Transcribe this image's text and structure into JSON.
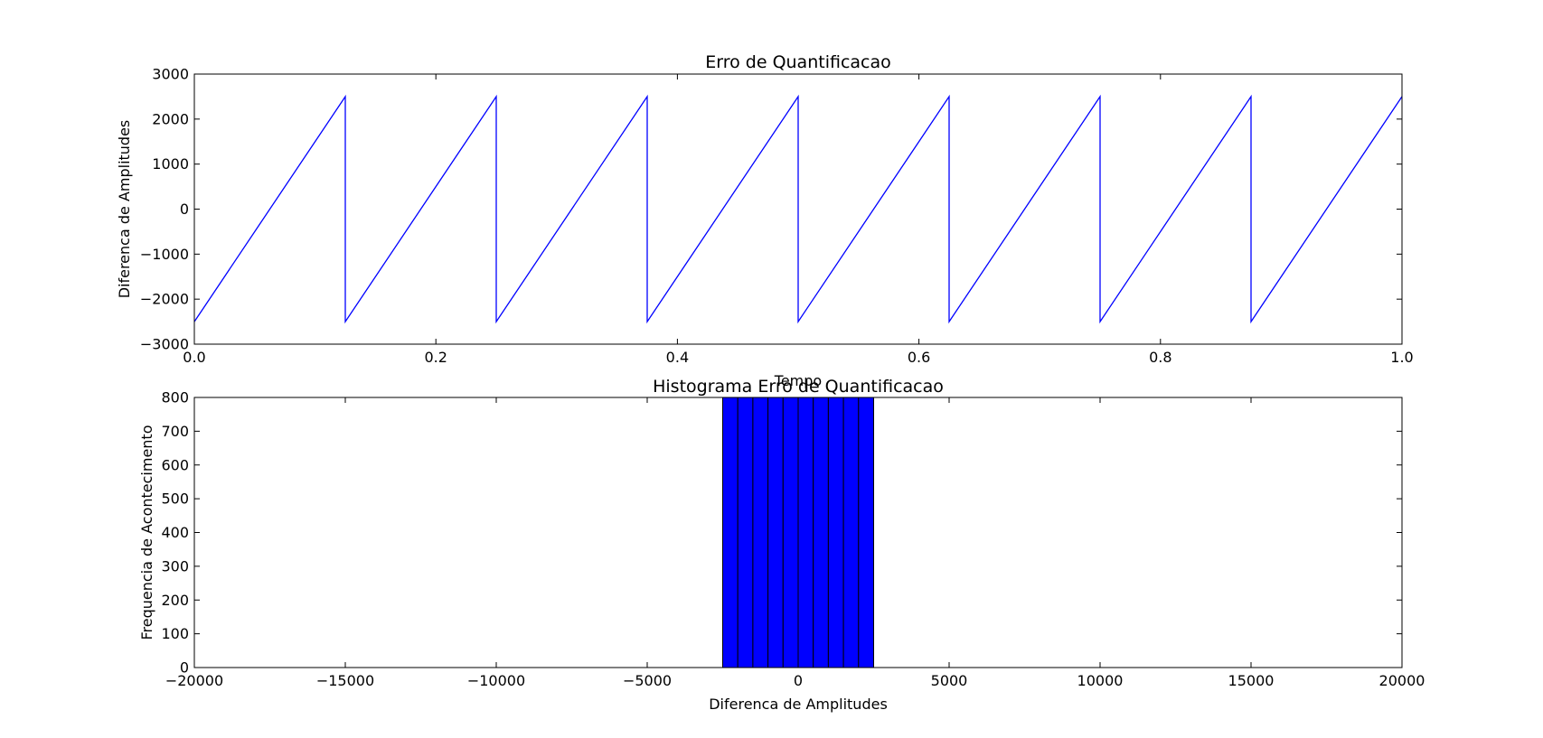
{
  "chart_data": [
    {
      "type": "line",
      "title": "Erro de Quantificacao",
      "xlabel": "Tempo",
      "ylabel": "Diferenca de Amplitudes",
      "xlim": [
        0,
        1
      ],
      "ylim": [
        -3000,
        3000
      ],
      "xticks": [
        0.0,
        0.2,
        0.4,
        0.6,
        0.8,
        1.0
      ],
      "xtick_labels": [
        "0.0",
        "0.2",
        "0.4",
        "0.6",
        "0.8",
        "1.0"
      ],
      "yticks": [
        -3000,
        -2000,
        -1000,
        0,
        1000,
        2000,
        3000
      ],
      "ytick_labels": [
        "−3000",
        "−2000",
        "−1000",
        "0",
        "1000",
        "2000",
        "3000"
      ],
      "grid": false,
      "color": "#0000ff",
      "series": [
        {
          "x": [
            0,
            0.125,
            0.125,
            0.25,
            0.25,
            0.375,
            0.375,
            0.5,
            0.5,
            0.625,
            0.625,
            0.75,
            0.75,
            0.875,
            0.875,
            1.0
          ],
          "y": [
            -2500,
            2500,
            -2500,
            2500,
            -2500,
            2500,
            -2500,
            2500,
            -2500,
            2500,
            -2500,
            2500,
            -2500,
            2500,
            -2500,
            2500
          ]
        }
      ]
    },
    {
      "type": "bar",
      "title": "Histograma Erro de Quantificacao",
      "xlabel": "Diferenca de Amplitudes",
      "ylabel": "Frequencia de Acontecimento",
      "xlim": [
        -20000,
        20000
      ],
      "ylim": [
        0,
        800
      ],
      "xticks": [
        -20000,
        -15000,
        -10000,
        -5000,
        0,
        5000,
        10000,
        15000,
        20000
      ],
      "xtick_labels": [
        "−20000",
        "−15000",
        "−10000",
        "−5000",
        "0",
        "5000",
        "10000",
        "15000",
        "20000"
      ],
      "yticks": [
        0,
        100,
        200,
        300,
        400,
        500,
        600,
        700,
        800
      ],
      "ytick_labels": [
        "0",
        "100",
        "200",
        "300",
        "400",
        "500",
        "600",
        "700",
        "800"
      ],
      "grid": false,
      "color": "#0000ff",
      "bin_edges": [
        -2500,
        -2000,
        -1500,
        -1000,
        -500,
        0,
        500,
        1000,
        1500,
        2000,
        2500
      ],
      "values": [
        800,
        800,
        800,
        800,
        800,
        800,
        800,
        800,
        800,
        800
      ]
    }
  ]
}
